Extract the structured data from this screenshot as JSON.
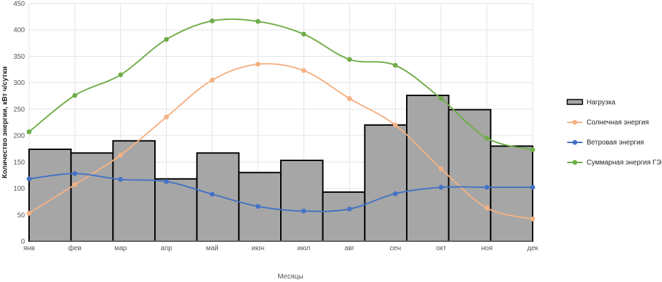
{
  "chart_data": {
    "type": "bar+line",
    "title": "",
    "xlabel": "Месяцы",
    "ylabel": "Количество энергии, кВт ч/сутки",
    "ylim": [
      0,
      450
    ],
    "yticks": [
      0,
      50,
      100,
      150,
      200,
      250,
      300,
      350,
      400,
      450
    ],
    "grid": true,
    "legend_position": "right",
    "categories": [
      "янв",
      "фев",
      "мар",
      "апр",
      "май",
      "июн",
      "июл",
      "авг",
      "сен",
      "окт",
      "ноя",
      "дек"
    ],
    "bars": {
      "name": "Нагрузка",
      "values": [
        174,
        167,
        190,
        118,
        167,
        130,
        153,
        93,
        220,
        276,
        249,
        180
      ],
      "color": "#a6a6a6"
    },
    "series": [
      {
        "name": "Солнечная энергия",
        "color": "#f4b183",
        "values": [
          53,
          107,
          163,
          235,
          305,
          335,
          323,
          270,
          220,
          137,
          63,
          42
        ]
      },
      {
        "name": "Ветровая энергия",
        "color": "#4472c4",
        "values": [
          118,
          128,
          117,
          113,
          89,
          66,
          57,
          61,
          90,
          102,
          102,
          102
        ]
      },
      {
        "name": "Суммарная энергия ГЭУ",
        "color": "#70ad47",
        "values": [
          207,
          276,
          315,
          382,
          417,
          416,
          392,
          344,
          333,
          270,
          195,
          173
        ]
      }
    ]
  }
}
